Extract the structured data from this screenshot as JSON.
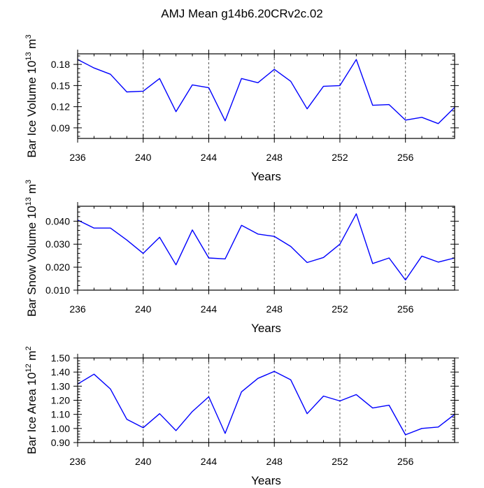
{
  "title": "AMJ Mean g14b6.20CRv2c.02",
  "line_color": "#0000ff",
  "chart_data": [
    {
      "type": "line",
      "ylabel_main": "Bar Ice Volume 10",
      "ylabel_exp": "13",
      "ylabel_unit": " m",
      "ylabel_unit_exp": "3",
      "xlabel": "Years",
      "xlim": [
        236,
        259
      ],
      "ylim": [
        0.075,
        0.195
      ],
      "x_ticks": [
        236,
        240,
        244,
        248,
        252,
        256
      ],
      "y_ticks": [
        0.09,
        0.12,
        0.15,
        0.18
      ],
      "y_tick_labels": [
        "0.09",
        "0.12",
        "0.15",
        "0.18"
      ],
      "dashed_grid_x": [
        240,
        244,
        248,
        252,
        256
      ],
      "x": [
        236,
        237,
        238,
        239,
        240,
        241,
        242,
        243,
        244,
        245,
        246,
        247,
        248,
        249,
        250,
        251,
        252,
        253,
        254,
        255,
        256,
        257,
        258,
        259
      ],
      "values": [
        0.187,
        0.175,
        0.166,
        0.141,
        0.142,
        0.16,
        0.113,
        0.151,
        0.147,
        0.1,
        0.16,
        0.154,
        0.173,
        0.156,
        0.117,
        0.149,
        0.15,
        0.187,
        0.122,
        0.123,
        0.101,
        0.105,
        0.096,
        0.119
      ]
    },
    {
      "type": "line",
      "ylabel_main": "Bar Snow Volume 10",
      "ylabel_exp": "13",
      "ylabel_unit": " m",
      "ylabel_unit_exp": "3",
      "xlabel": "Years",
      "xlim": [
        236,
        259
      ],
      "ylim": [
        0.01,
        0.0465
      ],
      "x_ticks": [
        236,
        240,
        244,
        248,
        252,
        256
      ],
      "y_ticks": [
        0.01,
        0.02,
        0.03,
        0.04
      ],
      "y_tick_labels": [
        "0.010",
        "0.020",
        "0.030",
        "0.040"
      ],
      "dashed_grid_x": [
        240,
        244,
        248,
        252,
        256
      ],
      "x": [
        236,
        237,
        238,
        239,
        240,
        241,
        242,
        243,
        244,
        245,
        246,
        247,
        248,
        249,
        250,
        251,
        252,
        253,
        254,
        255,
        256,
        257,
        258,
        259
      ],
      "values": [
        0.0405,
        0.037,
        0.037,
        0.0318,
        0.026,
        0.033,
        0.021,
        0.0362,
        0.024,
        0.0236,
        0.0382,
        0.0344,
        0.0334,
        0.029,
        0.022,
        0.0242,
        0.03,
        0.0432,
        0.0216,
        0.024,
        0.0144,
        0.0248,
        0.0222,
        0.024
      ]
    },
    {
      "type": "line",
      "ylabel_main": "Bar Ice Area 10",
      "ylabel_exp": "12",
      "ylabel_unit": " m",
      "ylabel_unit_exp": "2",
      "xlabel": "Years",
      "xlim": [
        236,
        259
      ],
      "ylim": [
        0.9,
        1.5
      ],
      "x_ticks": [
        236,
        240,
        244,
        248,
        252,
        256
      ],
      "y_ticks": [
        0.9,
        1.0,
        1.1,
        1.2,
        1.3,
        1.4,
        1.5
      ],
      "y_tick_labels": [
        "0.90",
        "1.00",
        "1.10",
        "1.20",
        "1.30",
        "1.40",
        "1.50"
      ],
      "y_minor_step": 0.02,
      "dashed_grid_x": [
        240,
        244,
        248,
        252,
        256
      ],
      "x": [
        236,
        237,
        238,
        239,
        240,
        241,
        242,
        243,
        244,
        245,
        246,
        247,
        248,
        249,
        250,
        251,
        252,
        253,
        254,
        255,
        256,
        257,
        258,
        259
      ],
      "values": [
        1.315,
        1.385,
        1.28,
        1.065,
        1.005,
        1.105,
        0.985,
        1.12,
        1.225,
        0.965,
        1.26,
        1.355,
        1.405,
        1.345,
        1.105,
        1.23,
        1.195,
        1.24,
        1.145,
        1.165,
        0.955,
        1.0,
        1.01,
        1.1
      ]
    }
  ]
}
